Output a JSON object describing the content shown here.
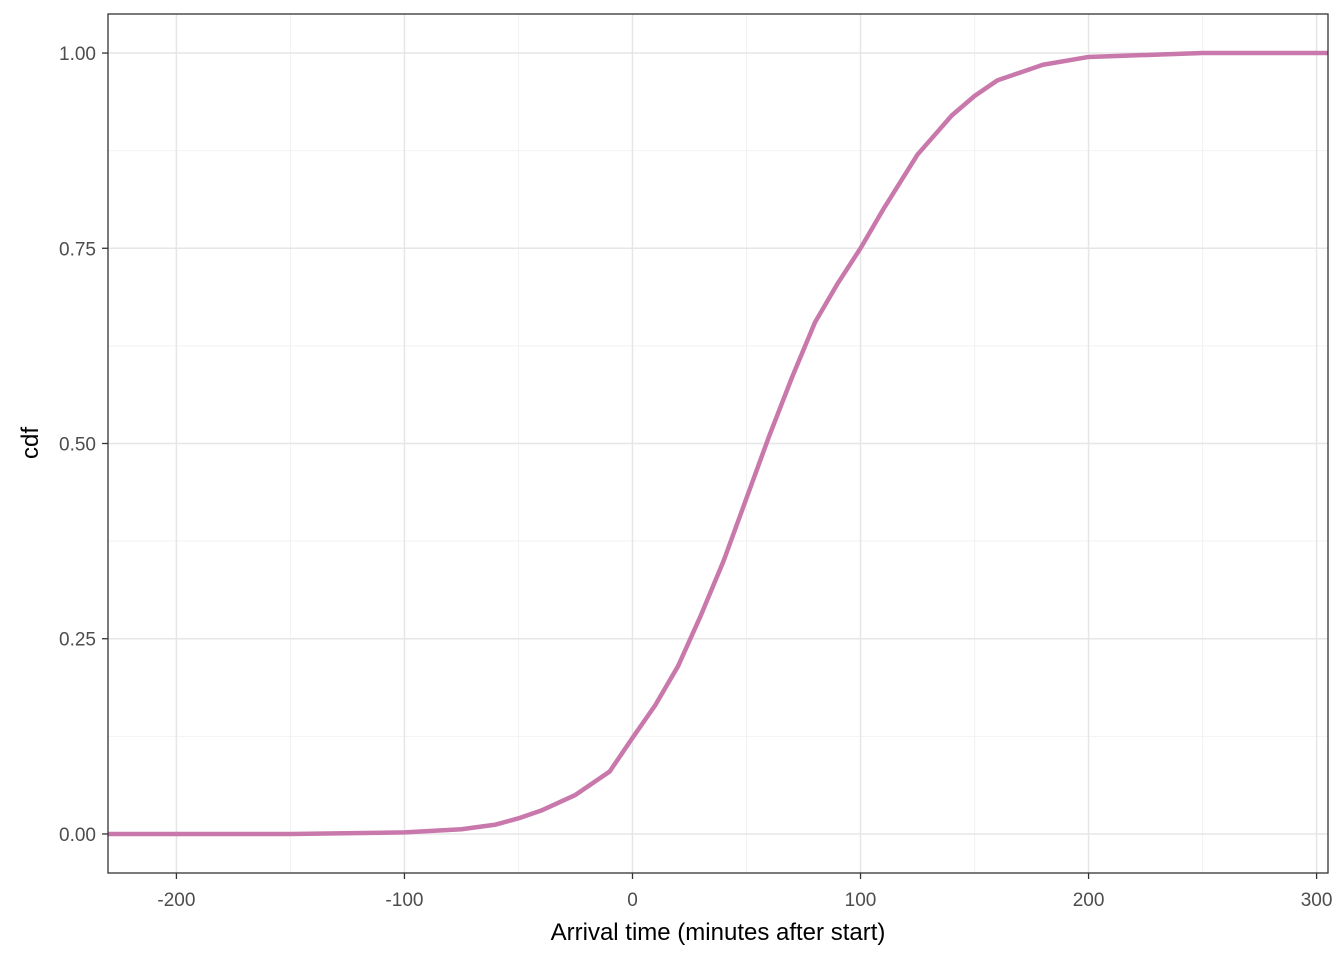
{
  "chart_data": {
    "type": "line",
    "x_label": "Arrival time (minutes after start)",
    "y_label": "cdf",
    "x": [
      -230,
      -150,
      -100,
      -75,
      -60,
      -50,
      -40,
      -25,
      -10,
      0,
      10,
      20,
      30,
      40,
      50,
      60,
      70,
      80,
      90,
      100,
      110,
      125,
      140,
      150,
      160,
      180,
      200,
      250,
      305
    ],
    "series": [
      {
        "name": "cdf",
        "color": "#c978ab",
        "values": [
          0,
          0,
          0.002,
          0.006,
          0.012,
          0.02,
          0.03,
          0.05,
          0.08,
          0.123,
          0.165,
          0.215,
          0.28,
          0.35,
          0.43,
          0.51,
          0.585,
          0.655,
          0.705,
          0.75,
          0.8,
          0.87,
          0.92,
          0.945,
          0.965,
          0.985,
          0.995,
          1.0,
          1.0
        ]
      }
    ],
    "xlim": [
      -230,
      305
    ],
    "ylim": [
      -0.05,
      1.05
    ],
    "xticks": [
      -200,
      -100,
      0,
      100,
      200,
      300
    ],
    "yticks": [
      {
        "value": 0,
        "label": "0.00"
      },
      {
        "value": 0.25,
        "label": "0.25"
      },
      {
        "value": 0.5,
        "label": "0.50"
      },
      {
        "value": 0.75,
        "label": "0.75"
      },
      {
        "value": 1,
        "label": "1.00"
      }
    ],
    "x_minor_ticks": [
      -150,
      -50,
      50,
      150,
      250
    ],
    "y_minor_ticks": [
      0.125,
      0.375,
      0.625,
      0.875
    ],
    "grid": true
  }
}
